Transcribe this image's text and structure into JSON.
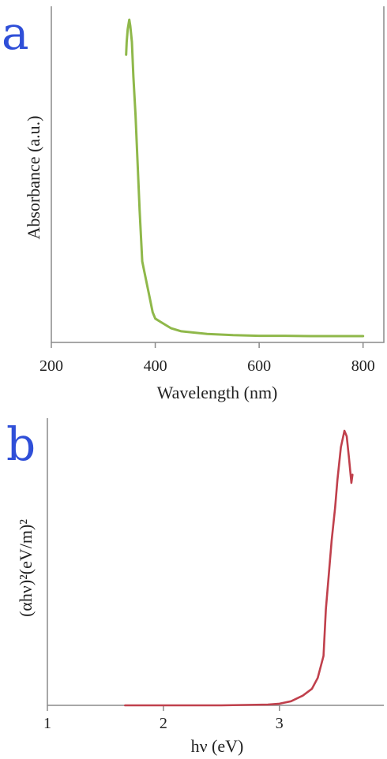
{
  "colors": {
    "panel_letter": "#2f4fd8",
    "series_a": "#8fb84a",
    "series_b": "#c0404c"
  },
  "chart_data": [
    {
      "type": "line",
      "panel": "a",
      "title": "",
      "xlabel": "Wavelength (nm)",
      "ylabel": "Absorbance (a.u.)",
      "xlim": [
        200,
        840
      ],
      "ylim": [
        0,
        1
      ],
      "xticks": [
        "200",
        "400",
        "600",
        "800"
      ],
      "yticks": [],
      "grid": false,
      "series": [
        {
          "x": [
            344,
            345,
            347,
            350,
            352,
            355,
            358,
            362,
            366,
            370,
            375,
            380,
            385,
            390,
            395,
            400,
            410,
            420,
            430,
            450,
            500,
            550,
            600,
            650,
            700,
            750,
            800
          ],
          "y": [
            0.89,
            0.93,
            0.97,
            1.0,
            0.98,
            0.93,
            0.82,
            0.7,
            0.55,
            0.4,
            0.24,
            0.2,
            0.16,
            0.12,
            0.08,
            0.06,
            0.05,
            0.04,
            0.03,
            0.02,
            0.012,
            0.008,
            0.006,
            0.006,
            0.005,
            0.005,
            0.005
          ]
        }
      ]
    },
    {
      "type": "line",
      "panel": "b",
      "title": "",
      "xlabel": "hν (eV)",
      "ylabel": "(αhν)²(eV/m)²",
      "xlim": [
        1,
        3.9
      ],
      "ylim": [
        0,
        1
      ],
      "xticks": [
        "1",
        "2",
        "3"
      ],
      "yticks": [],
      "grid": false,
      "series": [
        {
          "x": [
            1.67,
            2.0,
            2.5,
            2.9,
            3.0,
            3.1,
            3.2,
            3.28,
            3.33,
            3.38,
            3.4,
            3.43,
            3.45,
            3.48,
            3.5,
            3.53,
            3.56,
            3.58,
            3.6,
            3.62,
            3.63
          ],
          "y": [
            0.0,
            0.0,
            0.0,
            0.003,
            0.006,
            0.015,
            0.035,
            0.06,
            0.1,
            0.18,
            0.35,
            0.5,
            0.6,
            0.72,
            0.82,
            0.94,
            1.0,
            0.98,
            0.9,
            0.81,
            0.84
          ]
        }
      ]
    }
  ]
}
